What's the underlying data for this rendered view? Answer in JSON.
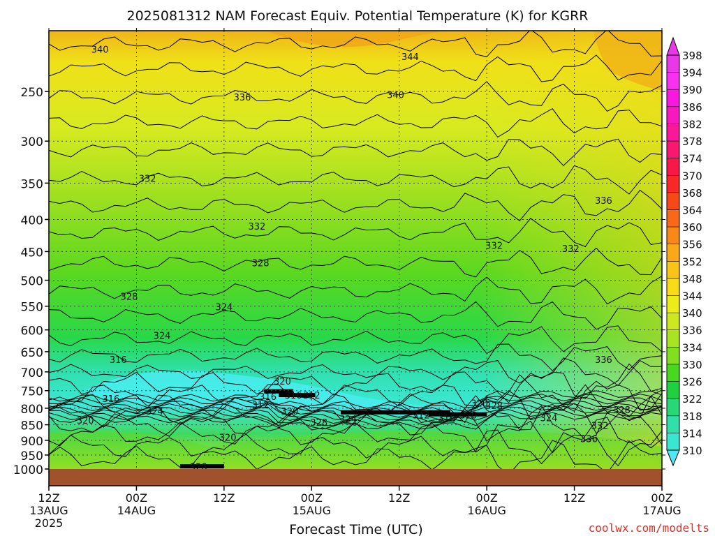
{
  "chart_data": {
    "type": "heatmap",
    "title": "2025081312 NAM Forecast Equiv. Potential Temperature (K) for KGRR",
    "xlabel": "Forecast Time (UTC)",
    "ylabel": "",
    "credit": "coolwx.com/modelts",
    "x_ticks": [
      {
        "hour": 0,
        "label": "12Z",
        "sub": "13AUG",
        "sub2": "2025"
      },
      {
        "hour": 12,
        "label": "00Z",
        "sub": "14AUG",
        "sub2": ""
      },
      {
        "hour": 24,
        "label": "12Z",
        "sub": "",
        "sub2": ""
      },
      {
        "hour": 36,
        "label": "00Z",
        "sub": "15AUG",
        "sub2": ""
      },
      {
        "hour": 48,
        "label": "12Z",
        "sub": "",
        "sub2": ""
      },
      {
        "hour": 60,
        "label": "00Z",
        "sub": "16AUG",
        "sub2": ""
      },
      {
        "hour": 72,
        "label": "12Z",
        "sub": "",
        "sub2": ""
      },
      {
        "hour": 84,
        "label": "00Z",
        "sub": "17AUG",
        "sub2": ""
      }
    ],
    "xlim": [
      0,
      84
    ],
    "y_ticks": [
      250,
      300,
      350,
      400,
      450,
      500,
      550,
      600,
      650,
      700,
      750,
      800,
      850,
      900,
      950,
      1000
    ],
    "ylim": [
      200,
      1000
    ],
    "y_scale": "log",
    "grid": true,
    "colorbar": {
      "levels": [
        310,
        314,
        318,
        322,
        326,
        330,
        334,
        336,
        340,
        344,
        348,
        352,
        356,
        360,
        364,
        368,
        370,
        374,
        378,
        382,
        386,
        390,
        394,
        398
      ],
      "colors": [
        "#50e8f8",
        "#3ae6d0",
        "#30e0a8",
        "#28d878",
        "#20d040",
        "#48d820",
        "#80e020",
        "#a8e420",
        "#cce820",
        "#ecec18",
        "#f8dc18",
        "#f8c418",
        "#f8a818",
        "#f88818",
        "#f86818",
        "#f84818",
        "#f82828",
        "#f81848",
        "#f81870",
        "#f81898",
        "#f818c0",
        "#f818e0",
        "#f830f0",
        "#e838e8"
      ]
    },
    "ground_color": "#a0522d",
    "contour_labels": [
      {
        "value": "340",
        "hour": 7,
        "p": 214
      },
      {
        "value": "344",
        "hour": 49.5,
        "p": 220
      },
      {
        "value": "336",
        "hour": 26.5,
        "p": 255
      },
      {
        "value": "340",
        "hour": 47.5,
        "p": 253
      },
      {
        "value": "332",
        "hour": 13.5,
        "p": 344
      },
      {
        "value": "332",
        "hour": 28.5,
        "p": 410
      },
      {
        "value": "336",
        "hour": 76,
        "p": 373
      },
      {
        "value": "332",
        "hour": 61,
        "p": 440
      },
      {
        "value": "332",
        "hour": 71.5,
        "p": 445
      },
      {
        "value": "328",
        "hour": 29,
        "p": 469
      },
      {
        "value": "328",
        "hour": 11,
        "p": 530
      },
      {
        "value": "324",
        "hour": 24,
        "p": 551
      },
      {
        "value": "324",
        "hour": 15.5,
        "p": 612
      },
      {
        "value": "316",
        "hour": 9.5,
        "p": 669
      },
      {
        "value": "336",
        "hour": 76,
        "p": 669
      },
      {
        "value": "320",
        "hour": 32,
        "p": 724
      },
      {
        "value": "316",
        "hour": 30,
        "p": 766
      },
      {
        "value": "316",
        "hour": 33.5,
        "p": 762
      },
      {
        "value": "312",
        "hour": 36,
        "p": 762
      },
      {
        "value": "316",
        "hour": 8.5,
        "p": 772
      },
      {
        "value": "312",
        "hour": 29,
        "p": 790
      },
      {
        "value": "324",
        "hour": 14.5,
        "p": 808
      },
      {
        "value": "320",
        "hour": 33,
        "p": 808
      },
      {
        "value": "320",
        "hour": 5,
        "p": 836
      },
      {
        "value": "328",
        "hour": 37,
        "p": 842
      },
      {
        "value": "324",
        "hour": 41,
        "p": 831
      },
      {
        "value": "312",
        "hour": 51,
        "p": 820
      },
      {
        "value": "316",
        "hour": 54.5,
        "p": 828
      },
      {
        "value": "320",
        "hour": 57.5,
        "p": 820
      },
      {
        "value": "320",
        "hour": 59,
        "p": 785
      },
      {
        "value": "328",
        "hour": 61,
        "p": 792
      },
      {
        "value": "324",
        "hour": 68.5,
        "p": 828
      },
      {
        "value": "332",
        "hour": 75.5,
        "p": 852
      },
      {
        "value": "336",
        "hour": 74,
        "p": 894
      },
      {
        "value": "328",
        "hour": 78.5,
        "p": 804
      },
      {
        "value": "320",
        "hour": 24.5,
        "p": 890
      },
      {
        "value": "328",
        "hour": 20.5,
        "p": 991
      }
    ]
  }
}
